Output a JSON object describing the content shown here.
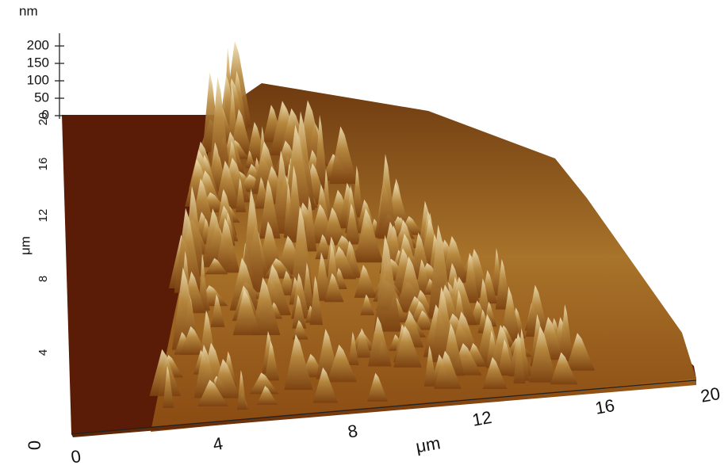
{
  "z_axis": {
    "unit": "nm",
    "ticks": [
      200,
      150,
      100,
      50,
      0
    ]
  },
  "y_axis": {
    "label": "μm",
    "ticks": [
      0,
      4,
      8,
      12,
      16,
      20
    ]
  },
  "x_axis": {
    "label": "μm",
    "ticks": [
      0,
      4,
      8,
      12,
      16,
      20
    ]
  }
}
